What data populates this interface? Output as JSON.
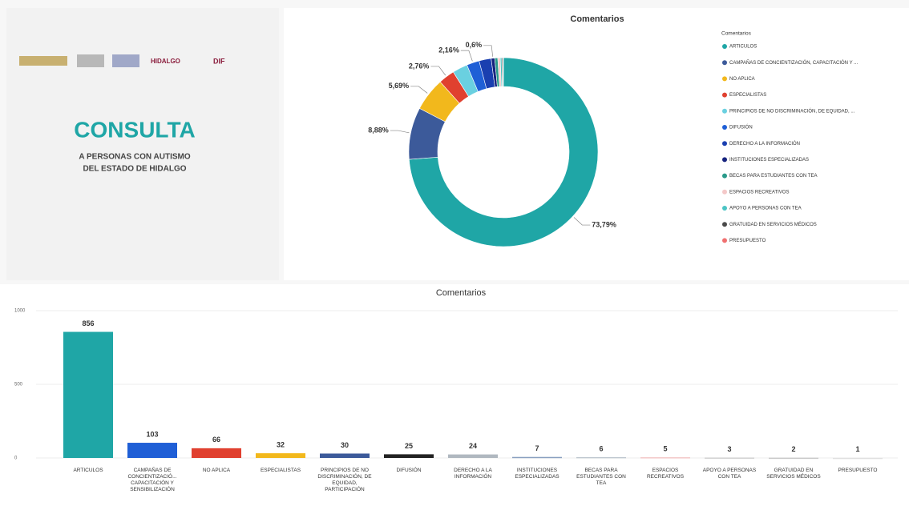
{
  "header": {
    "logos": [
      "HIDALGO",
      "DIF"
    ],
    "title": "CONSULTA",
    "subtitle": [
      "A PERSONAS CON AUTISMO",
      "DEL ESTADO DE HIDALGO"
    ]
  },
  "chart_data": [
    {
      "type": "pie",
      "title": "Comentarios",
      "legend_title": "Comentarios",
      "legend": "right",
      "categories": [
        "ARTICULOS",
        "CAMPAÑAS DE CONCIENTIZACIÓN, CAPACITACIÓN Y ...",
        "NO APLICA",
        "ESPECIALISTAS",
        "PRINCIPIOS DE NO DISCRIMINACIÓN, DE EQUIDAD, ...",
        "DIFUSIÓN",
        "DERECHO A LA INFORMACIÓN",
        "INSTITUCIONES ESPECIALIZADAS",
        "BECAS PARA ESTUDIANTES CON TEA",
        "ESPACIOS RECREATIVOS",
        "APOYO A PERSONAS CON TEA",
        "GRATUIDAD EN SERVICIOS MÉDICOS",
        "PRESUPUESTO"
      ],
      "values": [
        73.79,
        8.88,
        5.69,
        2.76,
        2.59,
        2.16,
        2.07,
        0.6,
        0.52,
        0.43,
        0.26,
        0.17,
        0.09
      ],
      "value_labels": [
        "73,79%",
        "8,88%",
        "5,69%",
        "2,76%",
        null,
        "2,16%",
        null,
        "0,6%",
        null,
        null,
        null,
        null,
        null
      ],
      "colors": [
        "#1fa6a6",
        "#3c5a9a",
        "#f2b81c",
        "#e0402f",
        "#6ad0e0",
        "#1f5fd6",
        "#1a3fb0",
        "#16237e",
        "#2a9a8a",
        "#f4c8c8",
        "#4cc4c4",
        "#4a4a4a",
        "#f07070"
      ]
    },
    {
      "type": "bar",
      "title": "Comentarios",
      "categories": [
        "ARTICULOS",
        "CAMPAÑAS DE CONCIENTIZACIÓ... CAPACITACIÓN Y SENSIBILIZACIÓN",
        "NO APLICA",
        "ESPECIALISTAS",
        "PRINCIPIOS DE NO DISCRIMINACIÓN, DE EQUIDAD, PARTICIPACIÓN",
        "DIFUSIÓN",
        "DERECHO A LA INFORMACIÓN",
        "INSTITUCIONES ESPECIALIZADAS",
        "BECAS PARA ESTUDIANTES CON TEA",
        "ESPACIOS RECREATIVOS",
        "APOYO A PERSONAS CON TEA",
        "GRATUIDAD EN SERVICIOS MÉDICOS",
        "PRESUPUESTO"
      ],
      "values": [
        856,
        103,
        66,
        32,
        30,
        25,
        24,
        7,
        6,
        5,
        3,
        2,
        1
      ],
      "colors": [
        "#1fa6a6",
        "#1f5fd6",
        "#e0402f",
        "#f2b81c",
        "#3c5a9a",
        "#222222",
        "#b0b8c0",
        "#8aa0c0",
        "#c0c8d0",
        "#f4c8c8",
        "#d0d0d0",
        "#c8c8c8",
        "#e0e0e0"
      ],
      "ylim": [
        0,
        1000
      ],
      "yticks": [
        0,
        500,
        1000
      ],
      "grid": true
    }
  ]
}
